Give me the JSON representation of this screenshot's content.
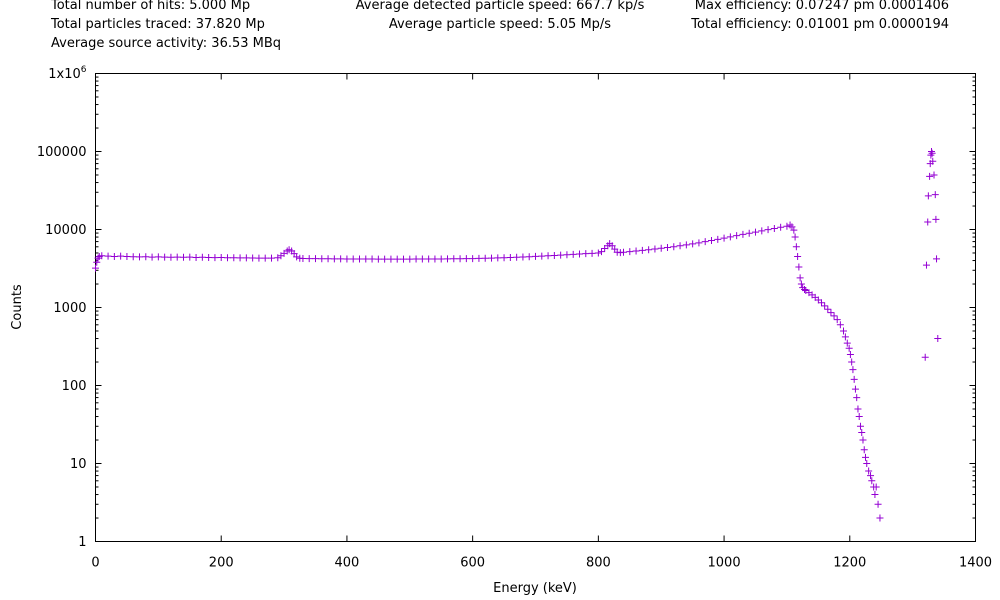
{
  "stats": {
    "left": [
      "Total number of hits: 5.000 Mp",
      "Total particles traced: 37.820 Mp",
      "Average source activity: 36.53 MBq"
    ],
    "center": [
      "Average detected particle speed: 667.7 kp/s",
      "Average particle speed: 5.05 Mp/s"
    ],
    "right": [
      "Max efficiency: 0.07247 pm 0.0001406",
      "Total efficiency: 0.01001 pm 0.0000194"
    ]
  },
  "chart_data": {
    "type": "scatter",
    "title": "",
    "xlabel": "Energy (keV)",
    "ylabel": "Counts",
    "xlim": [
      0,
      1400
    ],
    "ylim": [
      1,
      1000000
    ],
    "yscale": "log",
    "grid": false,
    "marker": "+",
    "color": "#9400D3",
    "x_ticks": [
      "0",
      "200",
      "400",
      "600",
      "800",
      "1000",
      "1200",
      "1400"
    ],
    "y_ticks": [
      {
        "value": 1,
        "label": "1"
      },
      {
        "value": 10,
        "label": "10"
      },
      {
        "value": 100,
        "label": "100"
      },
      {
        "value": 1000,
        "label": "1000"
      },
      {
        "value": 10000,
        "label": "10000"
      },
      {
        "value": 100000,
        "label": "100000"
      },
      {
        "value": 1000000,
        "label": "1x10",
        "sup": "6"
      }
    ],
    "series": [
      {
        "points": [
          [
            0,
            3200
          ],
          [
            2,
            3800
          ],
          [
            4,
            4300
          ],
          [
            6,
            4500
          ],
          [
            10,
            4600
          ],
          [
            20,
            4550
          ],
          [
            30,
            4500
          ],
          [
            40,
            4550
          ],
          [
            50,
            4500
          ],
          [
            60,
            4480
          ],
          [
            70,
            4450
          ],
          [
            80,
            4470
          ],
          [
            90,
            4430
          ],
          [
            100,
            4450
          ],
          [
            110,
            4420
          ],
          [
            120,
            4400
          ],
          [
            130,
            4430
          ],
          [
            140,
            4400
          ],
          [
            150,
            4420
          ],
          [
            160,
            4380
          ],
          [
            170,
            4400
          ],
          [
            180,
            4380
          ],
          [
            190,
            4360
          ],
          [
            200,
            4380
          ],
          [
            210,
            4350
          ],
          [
            220,
            4340
          ],
          [
            230,
            4330
          ],
          [
            240,
            4320
          ],
          [
            250,
            4310
          ],
          [
            260,
            4300
          ],
          [
            270,
            4290
          ],
          [
            280,
            4290
          ],
          [
            290,
            4350
          ],
          [
            295,
            4600
          ],
          [
            300,
            4950
          ],
          [
            305,
            5300
          ],
          [
            308,
            5500
          ],
          [
            312,
            5300
          ],
          [
            316,
            4900
          ],
          [
            320,
            4450
          ],
          [
            325,
            4280
          ],
          [
            330,
            4250
          ],
          [
            340,
            4240
          ],
          [
            350,
            4230
          ],
          [
            360,
            4220
          ],
          [
            370,
            4210
          ],
          [
            380,
            4200
          ],
          [
            390,
            4200
          ],
          [
            400,
            4190
          ],
          [
            410,
            4190
          ],
          [
            420,
            4180
          ],
          [
            430,
            4180
          ],
          [
            440,
            4180
          ],
          [
            450,
            4170
          ],
          [
            460,
            4170
          ],
          [
            470,
            4170
          ],
          [
            480,
            4170
          ],
          [
            490,
            4170
          ],
          [
            500,
            4170
          ],
          [
            510,
            4180
          ],
          [
            520,
            4180
          ],
          [
            530,
            4180
          ],
          [
            540,
            4190
          ],
          [
            550,
            4190
          ],
          [
            560,
            4200
          ],
          [
            570,
            4210
          ],
          [
            580,
            4220
          ],
          [
            590,
            4230
          ],
          [
            600,
            4240
          ],
          [
            610,
            4260
          ],
          [
            620,
            4280
          ],
          [
            630,
            4300
          ],
          [
            640,
            4320
          ],
          [
            650,
            4350
          ],
          [
            660,
            4380
          ],
          [
            670,
            4410
          ],
          [
            680,
            4440
          ],
          [
            690,
            4480
          ],
          [
            700,
            4520
          ],
          [
            710,
            4560
          ],
          [
            720,
            4610
          ],
          [
            730,
            4650
          ],
          [
            740,
            4700
          ],
          [
            750,
            4750
          ],
          [
            760,
            4800
          ],
          [
            770,
            4850
          ],
          [
            780,
            4900
          ],
          [
            790,
            4950
          ],
          [
            800,
            5000
          ],
          [
            805,
            5200
          ],
          [
            810,
            5700
          ],
          [
            815,
            6200
          ],
          [
            818,
            6600
          ],
          [
            822,
            6200
          ],
          [
            826,
            5600
          ],
          [
            830,
            5100
          ],
          [
            835,
            5050
          ],
          [
            840,
            5100
          ],
          [
            850,
            5200
          ],
          [
            860,
            5300
          ],
          [
            870,
            5400
          ],
          [
            880,
            5500
          ],
          [
            890,
            5620
          ],
          [
            900,
            5750
          ],
          [
            910,
            5880
          ],
          [
            920,
            6020
          ],
          [
            930,
            6180
          ],
          [
            940,
            6350
          ],
          [
            950,
            6550
          ],
          [
            960,
            6750
          ],
          [
            970,
            6980
          ],
          [
            980,
            7230
          ],
          [
            990,
            7480
          ],
          [
            1000,
            7750
          ],
          [
            1010,
            8050
          ],
          [
            1020,
            8350
          ],
          [
            1030,
            8650
          ],
          [
            1040,
            8950
          ],
          [
            1050,
            9250
          ],
          [
            1060,
            9600
          ],
          [
            1070,
            9950
          ],
          [
            1080,
            10300
          ],
          [
            1090,
            10700
          ],
          [
            1100,
            11000
          ],
          [
            1105,
            11400
          ],
          [
            1108,
            10800
          ],
          [
            1111,
            9800
          ],
          [
            1113,
            8000
          ],
          [
            1115,
            6000
          ],
          [
            1117,
            4500
          ],
          [
            1119,
            3300
          ],
          [
            1121,
            2400
          ],
          [
            1123,
            2000
          ],
          [
            1125,
            1800
          ],
          [
            1128,
            1700
          ],
          [
            1130,
            1650
          ],
          [
            1135,
            1550
          ],
          [
            1140,
            1450
          ],
          [
            1145,
            1350
          ],
          [
            1150,
            1250
          ],
          [
            1155,
            1150
          ],
          [
            1160,
            1050
          ],
          [
            1165,
            950
          ],
          [
            1170,
            860
          ],
          [
            1175,
            780
          ],
          [
            1180,
            700
          ],
          [
            1185,
            600
          ],
          [
            1190,
            500
          ],
          [
            1193,
            420
          ],
          [
            1196,
            350
          ],
          [
            1199,
            300
          ],
          [
            1201,
            250
          ],
          [
            1203,
            200
          ],
          [
            1205,
            160
          ],
          [
            1207,
            120
          ],
          [
            1209,
            90
          ],
          [
            1211,
            70
          ],
          [
            1213,
            50
          ],
          [
            1215,
            40
          ],
          [
            1217,
            30
          ],
          [
            1219,
            25
          ],
          [
            1221,
            20
          ],
          [
            1223,
            15
          ],
          [
            1225,
            12
          ],
          [
            1227,
            10
          ],
          [
            1230,
            8
          ],
          [
            1233,
            7
          ],
          [
            1235,
            6
          ],
          [
            1238,
            5
          ],
          [
            1240,
            4
          ],
          [
            1242,
            5
          ],
          [
            1245,
            3
          ],
          [
            1248,
            2
          ],
          [
            1320,
            230
          ],
          [
            1322,
            3500
          ],
          [
            1324,
            12500
          ],
          [
            1325,
            27000
          ],
          [
            1327,
            48000
          ],
          [
            1328,
            70000
          ],
          [
            1329,
            90000
          ],
          [
            1330,
            100000
          ],
          [
            1331,
            95000
          ],
          [
            1332,
            75000
          ],
          [
            1334,
            50000
          ],
          [
            1336,
            28000
          ],
          [
            1337,
            13500
          ],
          [
            1338,
            4200
          ],
          [
            1340,
            400
          ]
        ]
      }
    ]
  }
}
